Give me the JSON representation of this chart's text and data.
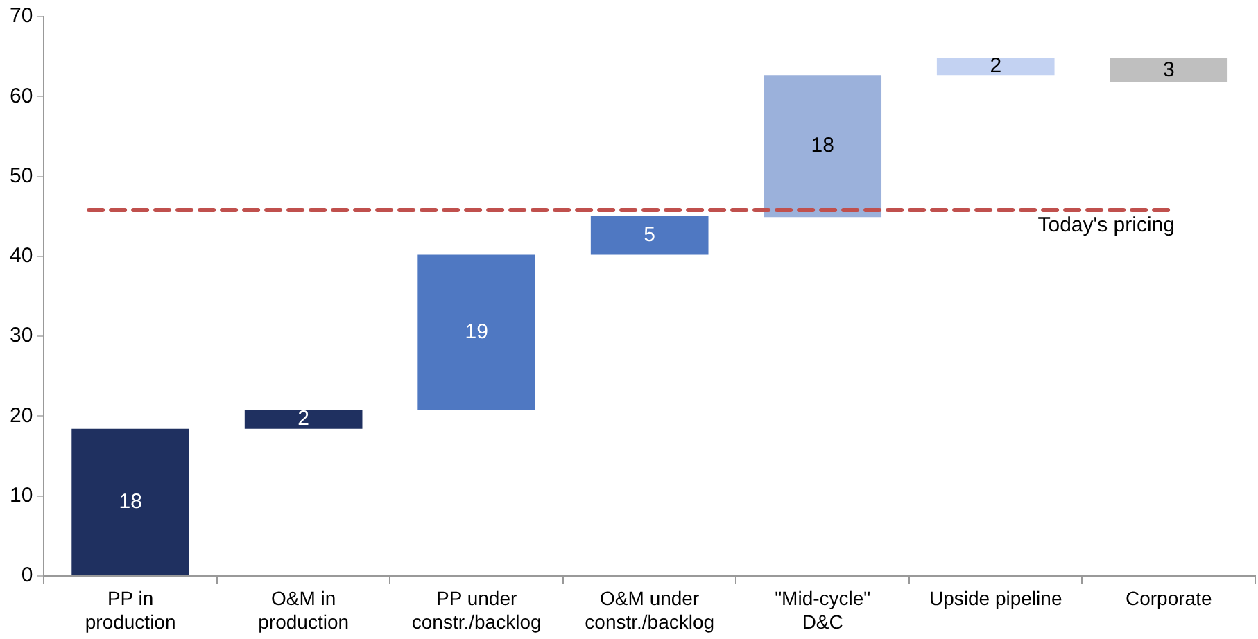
{
  "chart_data": {
    "type": "bar",
    "categories": [
      "PP in production",
      "O&M in production",
      "PP under constr./backlog",
      "O&M under constr./backlog",
      "\"Mid-cycle\" D&C",
      "Upside pipeline",
      "Corporate"
    ],
    "values": [
      18.4,
      2.4,
      19.4,
      4.9,
      17.8,
      2.1,
      3.0
    ],
    "base": [
      0,
      18.4,
      20.8,
      40.2,
      44.9,
      62.7,
      61.8
    ],
    "colors": [
      "#1f3060",
      "#1f3060",
      "#4f78c2",
      "#4f78c2",
      "#9bb1db",
      "#c3d2f2",
      "#bfbfbf"
    ],
    "value_labels": [
      "18",
      "2",
      "19",
      "5",
      "18",
      "2",
      "3"
    ],
    "ylim": [
      0,
      70
    ],
    "yticks": [
      0,
      10,
      20,
      30,
      40,
      50,
      60,
      70
    ],
    "ref_lines": [
      {
        "axis": "y",
        "value": 45.8,
        "label": "Today's pricing",
        "color": "#c0504d",
        "line_style": "dashed"
      }
    ],
    "grid": false,
    "legend": false
  }
}
